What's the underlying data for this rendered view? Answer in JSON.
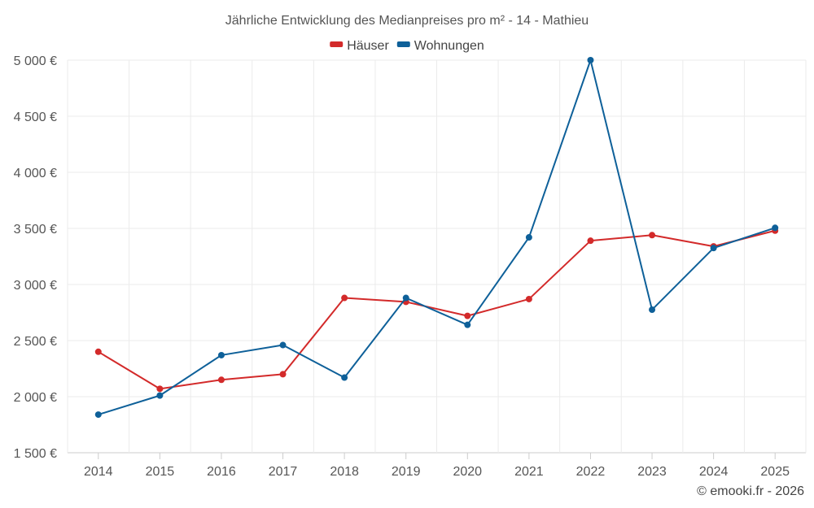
{
  "chart_data": {
    "type": "line",
    "title": "Jährliche Entwicklung des Medianpreises pro m² - 14 - Mathieu",
    "categories": [
      "2014",
      "2015",
      "2016",
      "2017",
      "2018",
      "2019",
      "2020",
      "2021",
      "2022",
      "2023",
      "2024",
      "2025"
    ],
    "series": [
      {
        "name": "Häuser",
        "color": "#d32a2a",
        "values": [
          2400,
          2070,
          2150,
          2200,
          2880,
          2845,
          2720,
          2870,
          3390,
          3440,
          3340,
          3480
        ]
      },
      {
        "name": "Wohnungen",
        "color": "#0e6099",
        "values": [
          1840,
          2010,
          2370,
          2460,
          2170,
          2880,
          2640,
          3420,
          5000,
          2775,
          3325,
          3505
        ]
      }
    ],
    "ylim": [
      1500,
      5000
    ],
    "yticks": [
      1500,
      2000,
      2500,
      3000,
      3500,
      4000,
      4500,
      5000
    ],
    "ytick_labels": [
      "1 500 €",
      "2 000 €",
      "2 500 €",
      "3 000 €",
      "3 500 €",
      "4 000 €",
      "4 500 €",
      "5 000 €"
    ],
    "xlabel": "",
    "ylabel": "",
    "grid": true,
    "legend_position": "top-center",
    "credit": "© emooki.fr - 2026"
  }
}
